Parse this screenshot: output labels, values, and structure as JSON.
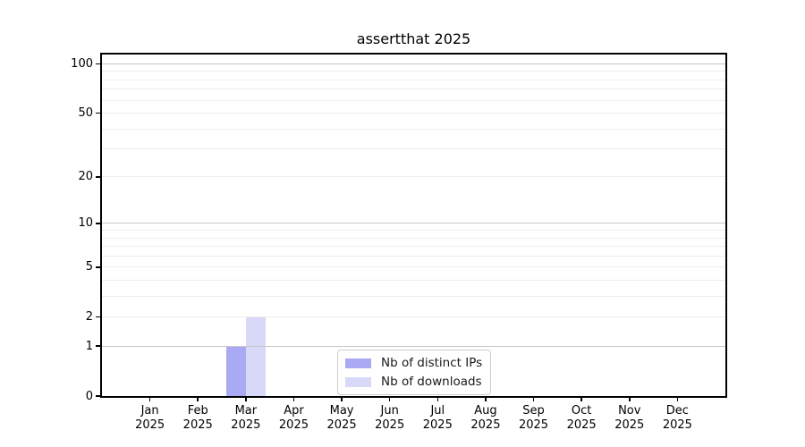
{
  "chart_data": {
    "type": "bar",
    "title": "assertthat 2025",
    "categories": [
      "Jan",
      "Feb",
      "Mar",
      "Apr",
      "May",
      "Jun",
      "Jul",
      "Aug",
      "Sep",
      "Oct",
      "Nov",
      "Dec"
    ],
    "category_year": "2025",
    "series": [
      {
        "name": "Nb of distinct IPs",
        "color": "#a9a9f4",
        "values": [
          0,
          0,
          1,
          0,
          0,
          0,
          0,
          0,
          0,
          0,
          0,
          0
        ]
      },
      {
        "name": "Nb of downloads",
        "color": "#d8d8f9",
        "values": [
          0,
          0,
          2,
          0,
          0,
          0,
          0,
          0,
          0,
          0,
          0,
          0
        ]
      }
    ],
    "y_scale": "log1p",
    "ylim": [
      0,
      114
    ],
    "y_ticks": [
      0,
      1,
      2,
      5,
      10,
      20,
      50,
      100
    ],
    "y_major_gridlines": [
      1,
      10,
      100
    ],
    "y_minor_gridlines": [
      2,
      3,
      4,
      5,
      6,
      7,
      8,
      9,
      20,
      30,
      40,
      50,
      60,
      70,
      80,
      90
    ],
    "legend": {
      "position": "lower center"
    },
    "colors": {
      "major_grid": "#c6c6c6",
      "minor_grid": "#ededed",
      "spine": "#000000",
      "text": "#000000"
    }
  }
}
